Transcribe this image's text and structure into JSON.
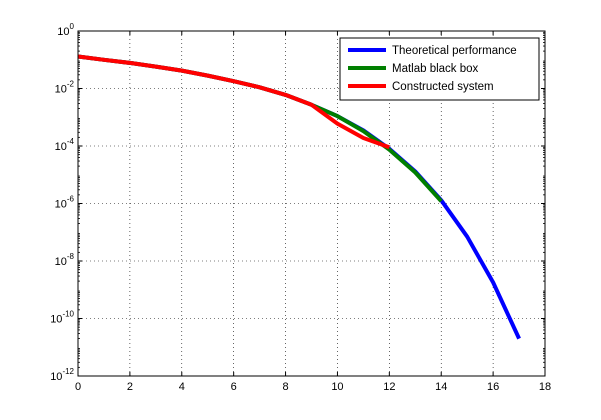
{
  "chart_data": {
    "type": "line",
    "title": "",
    "xlabel": "",
    "ylabel": "",
    "xlim": [
      0,
      18
    ],
    "ylim": [
      1e-12,
      1
    ],
    "yscale": "log",
    "grid": true,
    "legend_position": "top-right",
    "xticks": [
      0,
      2,
      4,
      6,
      8,
      10,
      12,
      14,
      16,
      18
    ],
    "yticks": [
      {
        "base": "10",
        "exp": "0",
        "value": 1
      },
      {
        "base": "10",
        "exp": "-2",
        "value": 0.01
      },
      {
        "base": "10",
        "exp": "-4",
        "value": 0.0001
      },
      {
        "base": "10",
        "exp": "-6",
        "value": 1e-06
      },
      {
        "base": "10",
        "exp": "-8",
        "value": 1e-08
      },
      {
        "base": "10",
        "exp": "-10",
        "value": 1e-10
      },
      {
        "base": "10",
        "exp": "-12",
        "value": 1e-12
      }
    ],
    "series": [
      {
        "name": "Theoretical performance",
        "color": "#0000ff",
        "x": [
          0,
          1,
          2,
          3,
          4,
          5,
          6,
          7,
          8,
          9,
          10,
          11,
          12,
          13,
          14,
          15,
          16,
          17
        ],
        "y": [
          0.13,
          0.1,
          0.078,
          0.058,
          0.042,
          0.028,
          0.018,
          0.011,
          0.006,
          0.0027,
          0.0011,
          0.00035,
          8e-05,
          1.3e-05,
          1.3e-06,
          7e-08,
          1.8e-09,
          2e-11
        ]
      },
      {
        "name": "Matlab black box",
        "color": "#007f00",
        "x": [
          0,
          1,
          2,
          3,
          4,
          5,
          6,
          7,
          8,
          9,
          10,
          11,
          12,
          13,
          14
        ],
        "y": [
          0.13,
          0.1,
          0.078,
          0.058,
          0.042,
          0.028,
          0.018,
          0.011,
          0.006,
          0.0027,
          0.0011,
          0.00033,
          7.5e-05,
          1.2e-05,
          1.2e-06
        ]
      },
      {
        "name": "Constructed system",
        "color": "#ff0000",
        "x": [
          0,
          1,
          2,
          3,
          4,
          5,
          6,
          7,
          8,
          9,
          10,
          11,
          12
        ],
        "y": [
          0.13,
          0.1,
          0.078,
          0.058,
          0.042,
          0.028,
          0.018,
          0.011,
          0.006,
          0.0027,
          0.0006,
          0.00019,
          9e-05
        ]
      }
    ]
  }
}
